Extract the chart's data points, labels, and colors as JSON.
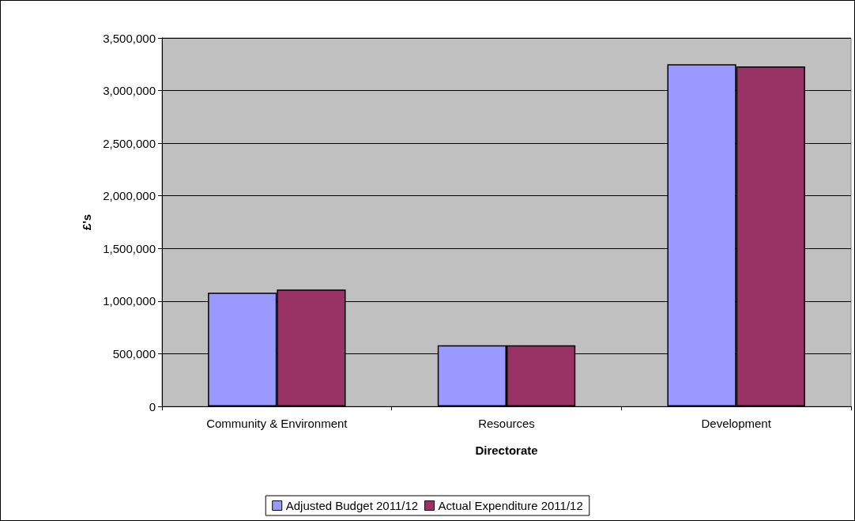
{
  "chart_data": {
    "type": "bar",
    "xlabel": "Directorate",
    "ylabel": "£'s",
    "categories": [
      "Community & Environment",
      "Resources",
      "Development"
    ],
    "series": [
      {
        "name": "Adjusted Budget 2011/12",
        "color": "#9999ff",
        "values": [
          1080000,
          580000,
          3250000
        ]
      },
      {
        "name": "Actual Expenditure 2011/12",
        "color": "#993366",
        "values": [
          1110000,
          580000,
          3230000
        ]
      }
    ],
    "ylim": [
      0,
      3500000
    ],
    "yticks": [
      0,
      {
        "value": 500000,
        "label": "500,000"
      },
      {
        "value": 1000000,
        "label": "1,000,000"
      },
      {
        "value": 1500000,
        "label": "1,500,000"
      },
      {
        "value": 2000000,
        "label": "2,000,000"
      },
      {
        "value": 2500000,
        "label": "2,500,000"
      },
      {
        "value": 3000000,
        "label": "3,000,000"
      },
      {
        "value": 3500000,
        "label": "3,500,000"
      }
    ],
    "grid": "y",
    "legend": "bottom"
  }
}
